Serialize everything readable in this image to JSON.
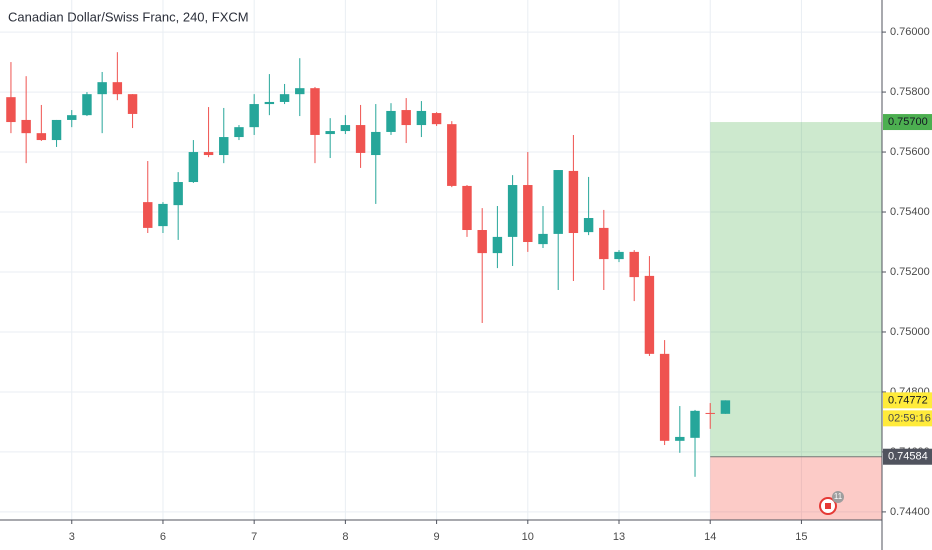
{
  "chart_data": {
    "type": "candlestick",
    "title": "Canadian Dollar/Swiss Franc, 240, FXCM",
    "x": [
      0,
      1,
      2,
      3,
      4,
      5,
      6,
      7,
      8,
      9,
      10,
      11,
      12,
      13,
      14,
      15,
      16,
      17,
      18,
      19,
      20,
      21,
      22,
      23,
      24,
      25,
      26,
      27,
      28,
      29,
      30,
      31,
      32,
      33,
      34,
      35,
      36,
      37,
      38,
      39,
      40,
      41,
      42,
      43,
      44,
      45,
      46,
      47
    ],
    "open": [
      0.75783,
      0.75707,
      0.75663,
      0.7564,
      0.75707,
      0.75723,
      0.75793,
      0.75833,
      0.75793,
      0.75433,
      0.75353,
      0.75423,
      0.755,
      0.756,
      0.7559,
      0.7565,
      0.75683,
      0.7576,
      0.75767,
      0.75793,
      0.75813,
      0.7566,
      0.7567,
      0.7569,
      0.7559,
      0.75667,
      0.7574,
      0.7569,
      0.7573,
      0.75693,
      0.75487,
      0.7534,
      0.75263,
      0.75317,
      0.7549,
      0.75293,
      0.75327,
      0.75537,
      0.75333,
      0.75347,
      0.75243,
      0.75267,
      0.75187,
      0.74927,
      0.74637,
      0.74647,
      0.7473,
      0.74727
    ],
    "high": [
      0.759,
      0.75853,
      0.75757,
      0.75707,
      0.7574,
      0.758,
      0.75867,
      0.75933,
      0.75793,
      0.7557,
      0.75433,
      0.75533,
      0.7564,
      0.7575,
      0.75747,
      0.7569,
      0.75793,
      0.7586,
      0.75827,
      0.75913,
      0.75817,
      0.75713,
      0.75723,
      0.75757,
      0.7576,
      0.75763,
      0.7578,
      0.7577,
      0.75733,
      0.75703,
      0.7549,
      0.75413,
      0.7542,
      0.75523,
      0.756,
      0.7542,
      0.7554,
      0.75657,
      0.75517,
      0.75407,
      0.75273,
      0.75273,
      0.75253,
      0.74973,
      0.74753,
      0.7474,
      0.74763,
      0.74772
    ],
    "low": [
      0.75663,
      0.75563,
      0.75637,
      0.75617,
      0.75683,
      0.7572,
      0.75663,
      0.75773,
      0.7568,
      0.7533,
      0.7533,
      0.75307,
      0.75497,
      0.75583,
      0.75563,
      0.7564,
      0.75657,
      0.75723,
      0.7576,
      0.7572,
      0.75563,
      0.7558,
      0.7566,
      0.75547,
      0.75427,
      0.75657,
      0.7563,
      0.7565,
      0.75687,
      0.75483,
      0.75317,
      0.7503,
      0.75213,
      0.7522,
      0.75267,
      0.7528,
      0.7514,
      0.7517,
      0.75323,
      0.7514,
      0.75233,
      0.75103,
      0.7492,
      0.74623,
      0.74597,
      0.74517,
      0.74677,
      0.74727
    ],
    "close": [
      0.757,
      0.75663,
      0.7564,
      0.75707,
      0.75723,
      0.75793,
      0.75833,
      0.75793,
      0.75727,
      0.75347,
      0.75427,
      0.755,
      0.756,
      0.7559,
      0.7565,
      0.75683,
      0.7576,
      0.75767,
      0.75793,
      0.75813,
      0.75657,
      0.7567,
      0.7569,
      0.75597,
      0.75667,
      0.75737,
      0.7569,
      0.75737,
      0.75693,
      0.75487,
      0.7534,
      0.75263,
      0.75317,
      0.7549,
      0.753,
      0.75327,
      0.7554,
      0.7533,
      0.7538,
      0.75243,
      0.75267,
      0.75183,
      0.74927,
      0.74637,
      0.7465,
      0.74737,
      0.74727,
      0.74772
    ],
    "up_color": "#26a69a",
    "down_color": "#ef5350",
    "xlim": [
      -0.72,
      57.3
    ],
    "xticks": [
      {
        "value": 4,
        "label": "3"
      },
      {
        "value": 10,
        "label": "6"
      },
      {
        "value": 16,
        "label": "7"
      },
      {
        "value": 22,
        "label": "8"
      },
      {
        "value": 28,
        "label": "9"
      },
      {
        "value": 34,
        "label": "10"
      },
      {
        "value": 40,
        "label": "13"
      },
      {
        "value": 46,
        "label": "14"
      },
      {
        "value": 52,
        "label": "15"
      }
    ],
    "ylim": [
      0.74373,
      0.76107
    ],
    "yticks": [
      {
        "value": 0.744,
        "label": "0.74400"
      },
      {
        "value": 0.746,
        "label": "0.74600"
      },
      {
        "value": 0.748,
        "label": "0.74800"
      },
      {
        "value": 0.75,
        "label": "0.75000"
      },
      {
        "value": 0.752,
        "label": "0.75200"
      },
      {
        "value": 0.754,
        "label": "0.75400"
      },
      {
        "value": 0.756,
        "label": "0.75600"
      },
      {
        "value": 0.758,
        "label": "0.75800"
      },
      {
        "value": 0.76,
        "label": "0.76000"
      }
    ],
    "grid": true,
    "position": {
      "target": {
        "value": 0.757,
        "label": "0.75700"
      },
      "entry": {
        "value": 0.74584,
        "label": "0.74584"
      },
      "stop": 0.74373,
      "start_x": 46
    },
    "last_price": {
      "value": 0.74772,
      "label": "0.74772"
    },
    "countdown": "02:59:16",
    "events_badge": "11"
  }
}
